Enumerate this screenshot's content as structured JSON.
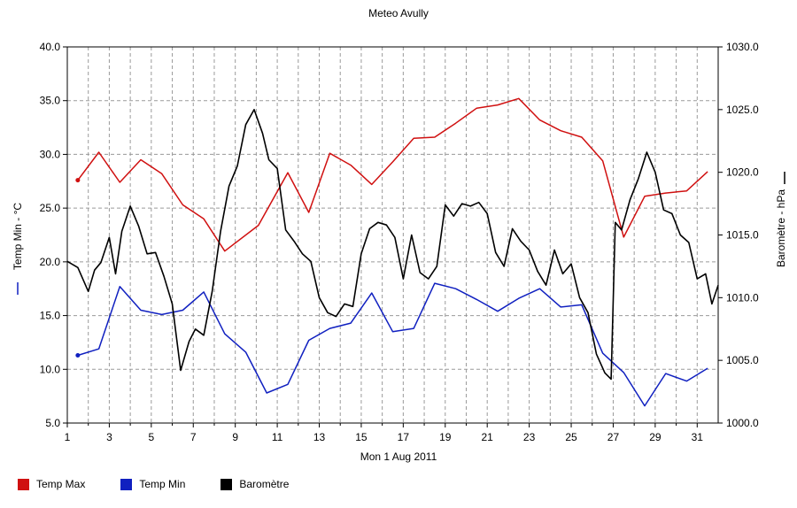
{
  "chart_data": {
    "type": "line",
    "title": "Meteo  Avully",
    "xlabel": "Mon 1 Aug 2011",
    "y_left_label": "Temp Min - °C",
    "y_right_label": "Baromètre - hPa",
    "x_ticks": [
      "1",
      "3",
      "5",
      "7",
      "9",
      "11",
      "13",
      "15",
      "17",
      "19",
      "21",
      "23",
      "25",
      "27",
      "29",
      "31"
    ],
    "x_tick_values": [
      1,
      3,
      5,
      7,
      9,
      11,
      13,
      15,
      17,
      19,
      21,
      23,
      25,
      27,
      29,
      31
    ],
    "y_left_ticks": [
      "5.0",
      "10.0",
      "15.0",
      "20.0",
      "25.0",
      "30.0",
      "35.0",
      "40.0"
    ],
    "y_left_tick_values": [
      5,
      10,
      15,
      20,
      25,
      30,
      35,
      40
    ],
    "y_right_ticks": [
      "1000.0",
      "1005.0",
      "1010.0",
      "1015.0",
      "1020.0",
      "1025.0",
      "1030.0"
    ],
    "y_right_tick_values": [
      1000,
      1005,
      1010,
      1015,
      1020,
      1025,
      1030
    ],
    "xlim": [
      1,
      32
    ],
    "ylim_left": [
      5,
      40
    ],
    "ylim_right": [
      1000,
      1030
    ],
    "grid": "dashed",
    "legend_position": "bottom-left",
    "series": [
      {
        "name": "Temp Max",
        "color": "#d01010",
        "axis": "left",
        "x": [
          1.5,
          2.5,
          3.5,
          4.5,
          5.5,
          6.5,
          7.5,
          8.5,
          10.1,
          11.5,
          12.5,
          13.5,
          14.5,
          15.5,
          16.5,
          17.5,
          18.5,
          19.5,
          20.5,
          21.5,
          22.5,
          23.5,
          24.5,
          25.5,
          26.5,
          27.5,
          28.5,
          29.5,
          30.5,
          31.5
        ],
        "values": [
          27.6,
          30.2,
          27.4,
          29.5,
          28.2,
          25.3,
          24.0,
          21.0,
          23.4,
          28.3,
          24.6,
          30.1,
          29.0,
          27.2,
          29.3,
          31.5,
          31.6,
          32.9,
          34.3,
          34.6,
          35.2,
          33.2,
          32.2,
          31.6,
          29.4,
          22.3,
          26.1,
          26.4,
          26.6,
          28.4
        ]
      },
      {
        "name": "Temp Min",
        "color": "#1020c0",
        "axis": "left",
        "x": [
          1.5,
          2.5,
          3.5,
          4.5,
          5.5,
          6.5,
          7.5,
          8.5,
          9.5,
          10.5,
          11.5,
          12.5,
          13.5,
          14.5,
          15.5,
          16.5,
          17.5,
          18.5,
          19.5,
          20.5,
          21.5,
          22.5,
          23.5,
          24.5,
          25.5,
          26.5,
          27.5,
          28.5,
          29.5,
          30.5,
          31.5
        ],
        "values": [
          11.3,
          11.9,
          17.7,
          15.5,
          15.1,
          15.5,
          17.2,
          13.3,
          11.6,
          7.8,
          8.6,
          12.7,
          13.8,
          14.3,
          17.1,
          13.5,
          13.8,
          18.0,
          17.5,
          16.5,
          15.4,
          16.6,
          17.5,
          15.8,
          16.0,
          11.5,
          9.7,
          6.6,
          9.6,
          8.9,
          10.1
        ]
      },
      {
        "name": "Baromètre",
        "color": "#000000",
        "axis": "right",
        "x": [
          1,
          1.5,
          2,
          2.3,
          2.6,
          3,
          3.3,
          3.6,
          4,
          4.4,
          4.8,
          5.2,
          5.6,
          6,
          6.4,
          6.8,
          7.1,
          7.5,
          7.9,
          8.3,
          8.7,
          9.1,
          9.5,
          9.9,
          10.3,
          10.6,
          11,
          11.4,
          11.8,
          12.2,
          12.6,
          13,
          13.4,
          13.8,
          14.2,
          14.6,
          15,
          15.4,
          15.8,
          16.2,
          16.6,
          17,
          17.4,
          17.8,
          18.2,
          18.6,
          19,
          19.4,
          19.8,
          20.2,
          20.6,
          21,
          21.4,
          21.8,
          22.2,
          22.6,
          23,
          23.4,
          23.8,
          24.2,
          24.6,
          25,
          25.4,
          25.8,
          26.2,
          26.6,
          26.9,
          27.1,
          27.4,
          27.8,
          28.2,
          28.6,
          29,
          29.4,
          29.8,
          30.2,
          30.6,
          31,
          31.4,
          31.7,
          32
        ],
        "values": [
          1012.9,
          1012.4,
          1010.5,
          1012.2,
          1012.8,
          1014.8,
          1011.9,
          1015.3,
          1017.3,
          1015.7,
          1013.5,
          1013.6,
          1011.7,
          1009.5,
          1004.2,
          1006.5,
          1007.5,
          1007.0,
          1010.5,
          1015.3,
          1018.9,
          1020.5,
          1023.8,
          1025.0,
          1023.1,
          1021.0,
          1020.3,
          1015.4,
          1014.5,
          1013.5,
          1012.9,
          1010.0,
          1008.8,
          1008.5,
          1009.5,
          1009.3,
          1013.5,
          1015.5,
          1016.0,
          1015.8,
          1014.8,
          1011.5,
          1015.0,
          1012.0,
          1011.5,
          1012.5,
          1017.4,
          1016.5,
          1017.5,
          1017.3,
          1017.6,
          1016.7,
          1013.6,
          1012.5,
          1015.5,
          1014.5,
          1013.8,
          1012.1,
          1011.0,
          1013.8,
          1011.9,
          1012.7,
          1010.0,
          1008.8,
          1005.5,
          1004.0,
          1003.5,
          1016.0,
          1015.4,
          1017.8,
          1019.5,
          1021.6,
          1020.0,
          1017.0,
          1016.7,
          1015.0,
          1014.4,
          1011.5,
          1011.9,
          1009.5,
          1011.0
        ]
      }
    ]
  }
}
